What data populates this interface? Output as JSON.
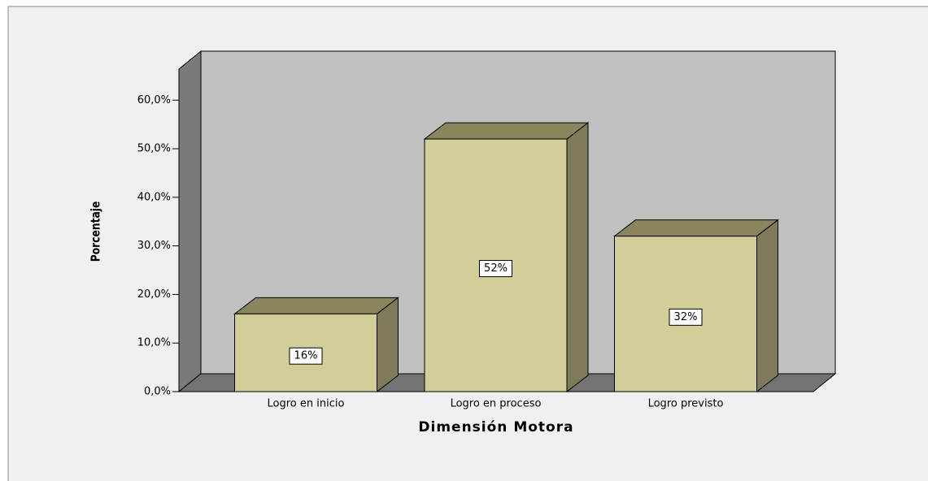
{
  "chart_data": {
    "type": "bar3d",
    "categories": [
      "Logro en inicio",
      "Logro en proceso",
      "Logro previsto"
    ],
    "values": [
      16,
      52,
      32
    ],
    "value_labels": [
      "16%",
      "52%",
      "32%"
    ],
    "x_label": "Dimensión Motora",
    "y_label": "Porcentaje",
    "ylim": [
      0,
      66.4
    ],
    "yticks": [
      {
        "value": 0,
        "label": "0,0%"
      },
      {
        "value": 10,
        "label": "10,0%"
      },
      {
        "value": 20,
        "label": "20,0%"
      },
      {
        "value": 30,
        "label": "30,0%"
      },
      {
        "value": 40,
        "label": "40,0%"
      },
      {
        "value": 50,
        "label": "50,0%"
      },
      {
        "value": 60,
        "label": "60,0%"
      }
    ],
    "color": "#d3ce98"
  }
}
